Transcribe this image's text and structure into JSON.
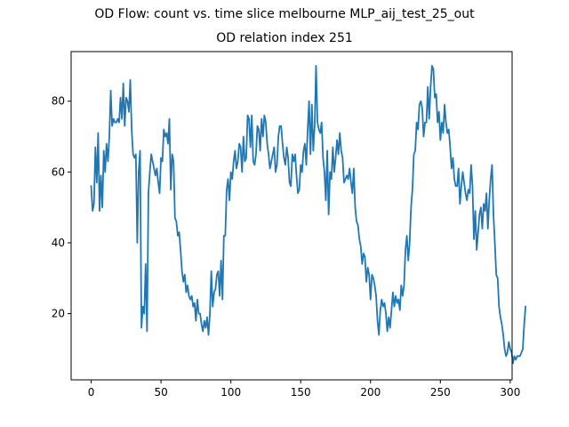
{
  "chart_data": {
    "type": "line",
    "title": "OD Flow: count vs. time slice melbourne MLP_aij_test_25_out",
    "subtitle": "OD relation index 251",
    "xlabel": "",
    "ylabel": "",
    "xlim": [
      -14.35,
      301.35
    ],
    "ylim": [
      1.3,
      94.0
    ],
    "xticks": [
      0,
      50,
      100,
      150,
      200,
      250,
      300
    ],
    "yticks": [
      20,
      40,
      60,
      80
    ],
    "grid": false,
    "legend": "none",
    "series": [
      {
        "color": "#1f77b4",
        "x_start": 0,
        "x_step": 1,
        "values": [
          56,
          49,
          51,
          67,
          57,
          71,
          49,
          59,
          50,
          66,
          60,
          68,
          63,
          70,
          83,
          73,
          75,
          74,
          74,
          75,
          74,
          81,
          75,
          85,
          73,
          81,
          80,
          77,
          86,
          72,
          65,
          64,
          65,
          40,
          60,
          66,
          16,
          22,
          20,
          34,
          15,
          54,
          60,
          65,
          63,
          61,
          59,
          61,
          57,
          54,
          64,
          63,
          72,
          70,
          71,
          68,
          75,
          55,
          65,
          63,
          47,
          46,
          42,
          43,
          38,
          32,
          29,
          31,
          26,
          28,
          25,
          24,
          25,
          22,
          23,
          18,
          24,
          20,
          20,
          17,
          15,
          18,
          16,
          19,
          14,
          20,
          32,
          22,
          26,
          27,
          31,
          32,
          25,
          35,
          24,
          42,
          42,
          55,
          58,
          52,
          60,
          58,
          63,
          66,
          61,
          63,
          68,
          67,
          60,
          70,
          63,
          64,
          76,
          75,
          67,
          76,
          63,
          62,
          65,
          73,
          72,
          66,
          75,
          70,
          76,
          74,
          68,
          65,
          61,
          63,
          65,
          67,
          60,
          62,
          70,
          73,
          73,
          68,
          64,
          62,
          67,
          64,
          57,
          56,
          65,
          63,
          65,
          59,
          54,
          55,
          62,
          60,
          66,
          68,
          62,
          72,
          80,
          65,
          79,
          66,
          73,
          90,
          74,
          72,
          71,
          74,
          64,
          60,
          52,
          66,
          48,
          60,
          58,
          67,
          60,
          64,
          69,
          65,
          71,
          66,
          64,
          57,
          58,
          59,
          58,
          61,
          57,
          54,
          61,
          50,
          46,
          45,
          41,
          39,
          34,
          37,
          36,
          29,
          33,
          31,
          24,
          31,
          30,
          28,
          25,
          18,
          14,
          21,
          24,
          22,
          23,
          20,
          15,
          19,
          16,
          21,
          26,
          22,
          25,
          23,
          24,
          21,
          28,
          25,
          28,
          38,
          42,
          35,
          40,
          50,
          55,
          65,
          66,
          74,
          72,
          79,
          80,
          78,
          70,
          74,
          74,
          84,
          75,
          84,
          90,
          89,
          81,
          82,
          74,
          77,
          69,
          74,
          71,
          79,
          74,
          71,
          72,
          67,
          61,
          64,
          58,
          56,
          56,
          61,
          51,
          56,
          60,
          57,
          54,
          52,
          55,
          54,
          62,
          56,
          41,
          49,
          38,
          43,
          48,
          50,
          44,
          51,
          49,
          54,
          44,
          52,
          58,
          62,
          48,
          40,
          31,
          30,
          22,
          19,
          17,
          14,
          10,
          8,
          9,
          12,
          10,
          9,
          6,
          8,
          7,
          8,
          8,
          8,
          9,
          10,
          17,
          22
        ],
        "values_note_removed": true
      }
    ]
  }
}
